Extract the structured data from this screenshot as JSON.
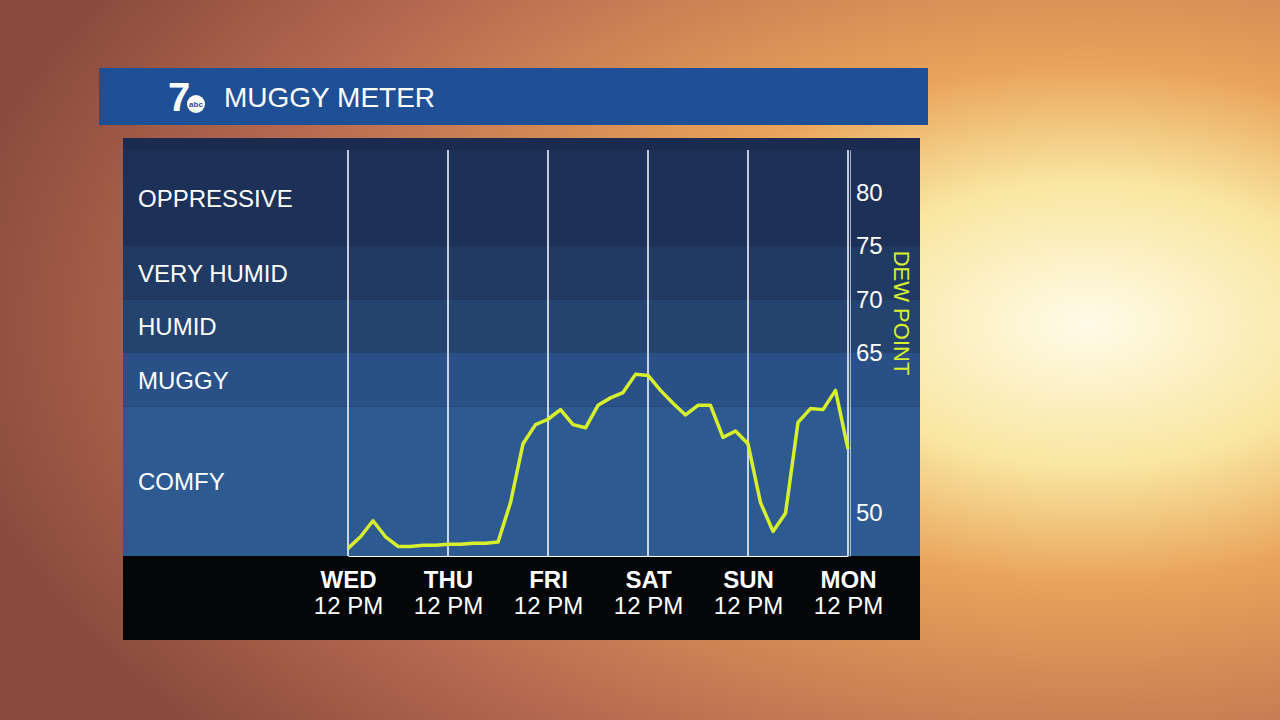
{
  "chart_data": {
    "type": "line",
    "title": "MUGGY METER",
    "logo": "7",
    "logo_sub": "abc",
    "y_label": "DEW POINT",
    "categories": [
      "WED 12 PM",
      null,
      null,
      null,
      null,
      null,
      null,
      null,
      "THU 12 PM",
      null,
      null,
      null,
      null,
      null,
      null,
      null,
      "FRI 12 PM",
      null,
      null,
      null,
      null,
      null,
      null,
      null,
      "SAT 12 PM",
      null,
      null,
      null,
      null,
      null,
      null,
      null,
      "SUN 12 PM",
      null,
      null,
      null,
      null,
      null,
      null,
      null,
      "MON 12 PM"
    ],
    "values": [
      46.7,
      47.8,
      49.3,
      47.8,
      46.9,
      46.9,
      47.0,
      47.0,
      47.1,
      47.1,
      47.2,
      47.2,
      47.3,
      51.0,
      56.5,
      58.3,
      58.8,
      59.7,
      58.3,
      58.0,
      60.1,
      60.8,
      61.3,
      63.0,
      62.9,
      61.5,
      60.3,
      59.2,
      60.1,
      60.1,
      57.1,
      57.7,
      56.5,
      51.0,
      48.3,
      50.0,
      58.5,
      59.8,
      59.7,
      61.5,
      56.0
    ],
    "color": "#d8f02c",
    "ylim": [
      46,
      84
    ],
    "yticks": [
      50,
      65,
      70,
      75,
      80
    ],
    "grid": true,
    "bands": [
      {
        "label": "COMFY",
        "from": 46,
        "to": 60
      },
      {
        "label": "MUGGY",
        "from": 60,
        "to": 65
      },
      {
        "label": "HUMID",
        "from": 65,
        "to": 70
      },
      {
        "label": "VERY HUMID",
        "from": 70,
        "to": 75
      },
      {
        "label": "OPPRESSIVE",
        "from": 75,
        "to": 84
      }
    ]
  }
}
